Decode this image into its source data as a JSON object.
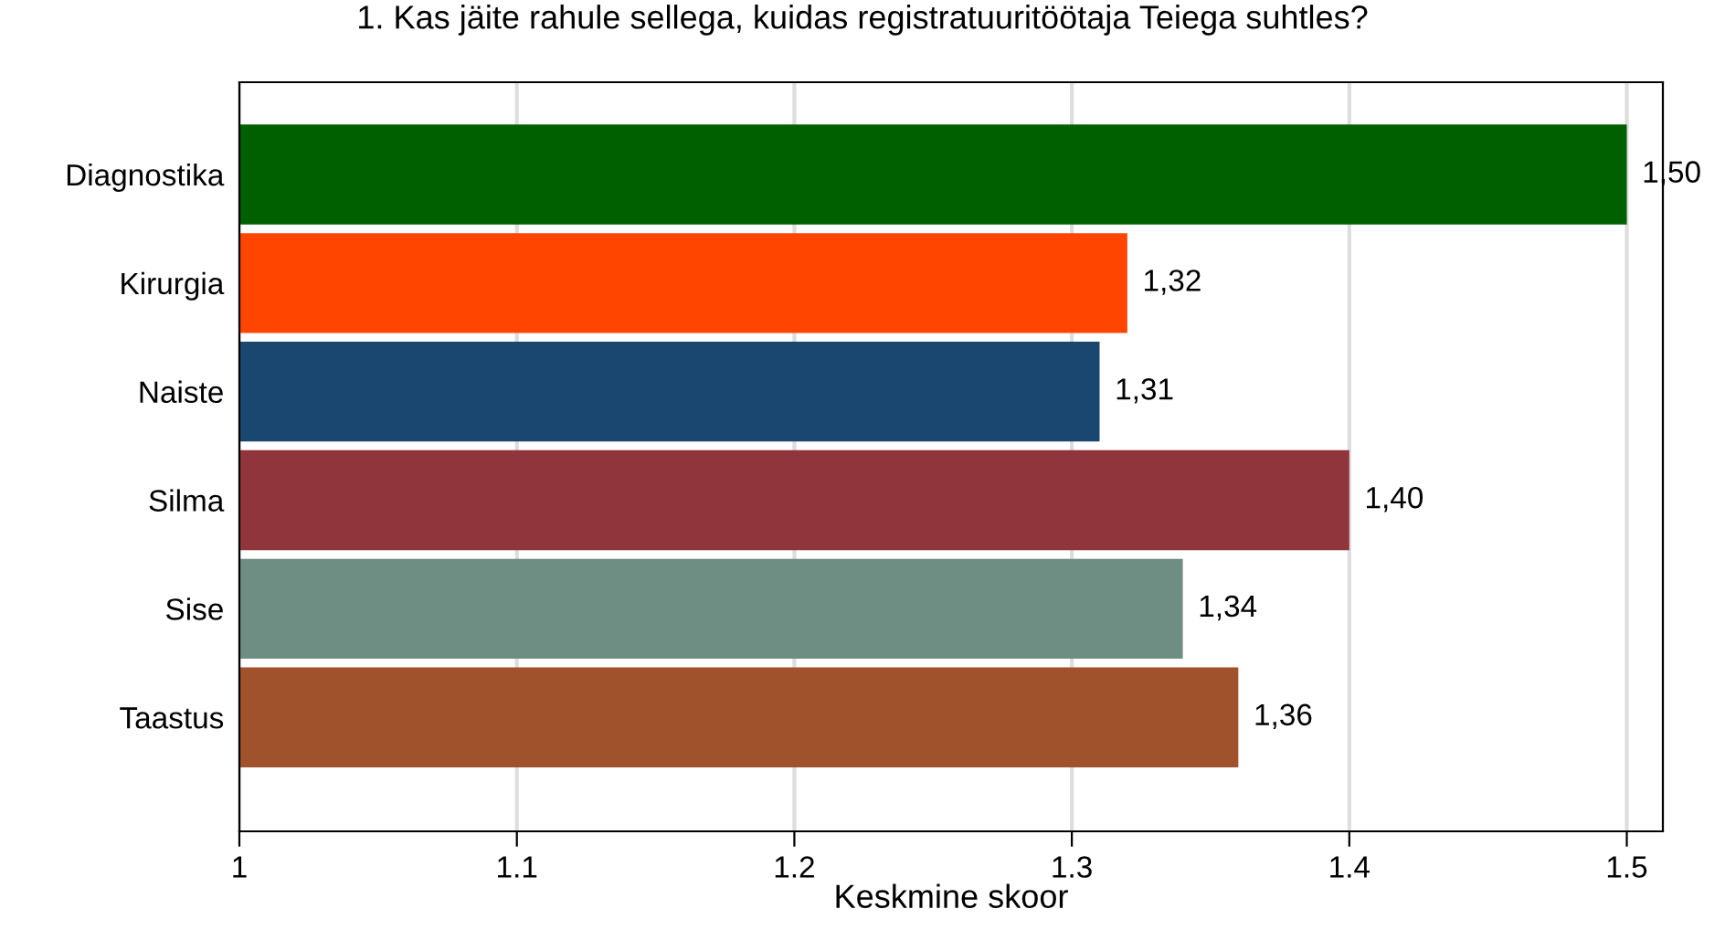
{
  "chart_data": {
    "type": "bar",
    "orientation": "horizontal",
    "title": "1. Kas jäite rahule sellega, kuidas registratuuritöötaja Teiega suhtles?",
    "xlabel": "Keskmine skoor",
    "categories": [
      "Diagnostika",
      "Kirurgia",
      "Naiste",
      "Silma",
      "Sise",
      "Taastus"
    ],
    "values": [
      1.5,
      1.32,
      1.31,
      1.4,
      1.34,
      1.36
    ],
    "value_labels": [
      "1,50",
      "1,32",
      "1,31",
      "1,40",
      "1,34",
      "1,36"
    ],
    "colors": [
      "#006000",
      "#ff4500",
      "#1a476f",
      "#90353b",
      "#6e8e84",
      "#a0522d"
    ],
    "xlim": [
      1,
      1.513
    ],
    "xticks": [
      1,
      1.1,
      1.2,
      1.3,
      1.4,
      1.5
    ],
    "grid": "x"
  }
}
